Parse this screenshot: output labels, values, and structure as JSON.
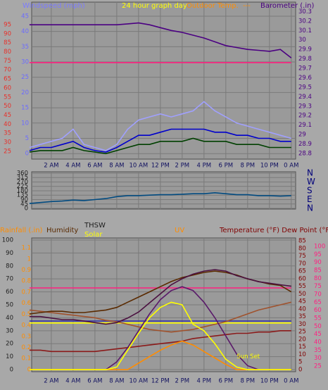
{
  "chart_data": [
    {
      "type": "line",
      "headers": [
        {
          "text": "Windspeed (mph)",
          "color": "#7b7bff"
        },
        {
          "text": "24 hour graph day",
          "color": "#ffff00"
        },
        {
          "text": "Outdoor Temp.",
          "color": "#ff8c00"
        },
        {
          "text": "---",
          "color": "#ff8c00"
        },
        {
          "text": "Barometer (.in)",
          "color": "#4b0082"
        }
      ],
      "xlim": [
        0.2,
        24.4
      ],
      "xticks": [
        {
          "value": 2,
          "label": "2 AM"
        },
        {
          "value": 4,
          "label": "4 AM"
        },
        {
          "value": 6,
          "label": "6 AM"
        },
        {
          "value": 8,
          "label": "8 AM"
        },
        {
          "value": 10,
          "label": "10 AM"
        },
        {
          "value": 12,
          "label": "12 PM"
        },
        {
          "value": 14,
          "label": "2 PM"
        },
        {
          "value": 16,
          "label": "4 PM"
        },
        {
          "value": 18,
          "label": "6 PM"
        },
        {
          "value": 20,
          "label": "8 PM"
        },
        {
          "value": 22,
          "label": "10 PM"
        },
        {
          "value": 24,
          "label": "0 AM"
        }
      ],
      "ylim": [
        -1.8,
        49.6
      ],
      "yticks": [
        0,
        5,
        10,
        15,
        20,
        25,
        30,
        35,
        40,
        45
      ],
      "ycolor": "#6b6bff",
      "y2lim": [
        28.74,
        30.4
      ],
      "y2ticks": [
        28.8,
        28.9,
        29,
        29.1,
        29.2,
        29.3,
        29.4,
        29.5,
        29.6,
        29.7,
        29.8,
        29.9,
        30,
        30.1,
        30.2,
        30.3
      ],
      "y2color": "#4b0082",
      "y3lim": [
        20.7,
        107.4
      ],
      "y3ticks": [
        25,
        30,
        35,
        40,
        45,
        50,
        55,
        60,
        65,
        70,
        75,
        80,
        85,
        90,
        95
      ],
      "y3color": "#e8302a",
      "grid": true,
      "x": [
        0,
        1,
        2,
        3,
        4,
        5,
        6,
        7,
        8,
        9,
        10,
        11,
        12,
        13,
        14,
        15,
        16,
        17,
        18,
        19,
        20,
        21,
        22,
        23,
        24
      ],
      "series": [
        {
          "color": "#a0a0ff",
          "values": [
            2,
            3,
            4,
            5,
            8,
            3,
            2,
            1,
            3,
            8,
            11,
            12,
            13,
            12,
            13,
            14,
            17,
            14,
            12,
            10,
            9,
            8,
            7,
            6,
            5
          ]
        },
        {
          "color": "#0000cc",
          "values": [
            1,
            2,
            2,
            3,
            4,
            2,
            1,
            0.5,
            2,
            4,
            6,
            6,
            7,
            8,
            8,
            8,
            8,
            7,
            7,
            6,
            6,
            5,
            5,
            4,
            4
          ]
        },
        {
          "color": "#004000",
          "values": [
            0.5,
            1,
            1,
            1,
            2,
            1,
            0.5,
            0,
            1,
            2,
            3,
            3,
            4,
            4,
            4,
            5,
            4,
            4,
            4,
            3,
            3,
            3,
            2,
            2,
            2
          ]
        },
        {
          "color": "#4b0082",
          "axis": "y2",
          "values": [
            30.16,
            30.16,
            30.16,
            30.16,
            30.16,
            30.16,
            30.16,
            30.16,
            30.16,
            30.17,
            30.18,
            30.16,
            30.13,
            30.1,
            30.08,
            30.05,
            30.02,
            29.98,
            29.94,
            29.92,
            29.9,
            29.89,
            29.88,
            29.9,
            29.81
          ]
        },
        {
          "color": "#ff2080",
          "axis": "y3",
          "values": [
            74,
            74,
            74,
            74,
            74,
            74,
            74,
            74,
            74,
            74,
            74,
            74,
            74,
            74,
            74,
            74,
            74,
            74,
            74,
            74,
            74,
            74,
            74,
            74,
            74
          ]
        }
      ]
    },
    {
      "type": "line",
      "xlim": [
        0.2,
        24.4
      ],
      "xticks": [
        2,
        4,
        6,
        8,
        10,
        12,
        14,
        16,
        18,
        20,
        22,
        24
      ],
      "ylim": [
        -7,
        374
      ],
      "yticks": [
        0,
        45,
        90,
        135,
        180,
        225,
        270,
        315,
        360
      ],
      "ycolor": "#202020",
      "y2lim": [
        -7,
        374
      ],
      "y2ticks": [
        {
          "value": 360,
          "label": "N"
        },
        {
          "value": 270,
          "label": "W"
        },
        {
          "value": 180,
          "label": "S"
        },
        {
          "value": 90,
          "label": "E"
        },
        {
          "value": 0,
          "label": "N"
        }
      ],
      "y2color": "#00007a",
      "grid": true,
      "x": [
        0,
        1,
        2,
        3,
        4,
        5,
        6,
        7,
        8,
        9,
        10,
        11,
        12,
        13,
        14,
        15,
        16,
        17,
        18,
        19,
        20,
        21,
        22,
        23,
        24
      ],
      "series": [
        {
          "color": "#004a80",
          "values": [
            50,
            60,
            70,
            75,
            85,
            80,
            90,
            100,
            120,
            130,
            130,
            135,
            140,
            140,
            145,
            150,
            150,
            160,
            150,
            140,
            140,
            130,
            130,
            125,
            130
          ]
        }
      ]
    },
    {
      "type": "line",
      "headers": [
        {
          "text": "Rainfall (.in)",
          "color": "#ff8c00"
        },
        {
          "text": "Humidity",
          "color": "#5a2a00"
        },
        {
          "text": "THSW",
          "color": "#202020"
        },
        {
          "text": "Solar",
          "color": "#ffff00"
        },
        {
          "text": "UV",
          "color": "#ff8c00"
        },
        {
          "text": "Temperature (°F) Dew Point (°F)",
          "color": "#800000"
        }
      ],
      "xlim": [
        0.2,
        24.4
      ],
      "xticks": [
        {
          "value": 2,
          "label": "2 AM"
        },
        {
          "value": 4,
          "label": "4 AM"
        },
        {
          "value": 6,
          "label": "6 AM"
        },
        {
          "value": 8,
          "label": "8 AM"
        },
        {
          "value": 10,
          "label": "10 AM"
        },
        {
          "value": 12,
          "label": "12 PM"
        },
        {
          "value": 14,
          "label": "2 PM"
        },
        {
          "value": 16,
          "label": "4 PM"
        },
        {
          "value": 18,
          "label": "6 PM"
        },
        {
          "value": 20,
          "label": "8 PM"
        },
        {
          "value": 22,
          "label": "10 PM"
        },
        {
          "value": 24,
          "label": "0 AM"
        }
      ],
      "ylim": [
        -1.6,
        101.6
      ],
      "yticks": [
        0,
        10,
        20,
        30,
        40,
        50,
        60,
        70,
        80,
        90,
        100
      ],
      "ycolor": "#202020",
      "y2lim": [
        -0.02,
        1.19
      ],
      "y2ticks": [
        0,
        0.1,
        0.2,
        0.3,
        0.4,
        0.5,
        0.6,
        0.7,
        0.8,
        0.9,
        1,
        1.1
      ],
      "y2color": "#ff8c00",
      "y3lim": [
        -1.4,
        86.9
      ],
      "y3ticks": [
        0,
        5,
        10,
        15,
        20,
        25,
        30,
        35,
        40,
        45,
        50,
        55,
        60,
        65,
        70,
        75,
        80,
        85
      ],
      "y3color": "#800000",
      "y4lim": [
        21.5,
        105.3
      ],
      "y4ticks": [
        25,
        30,
        35,
        40,
        45,
        50,
        55,
        60,
        65,
        70,
        75,
        80,
        85,
        90,
        95,
        100
      ],
      "y4color": "#ff2080",
      "grid": true,
      "annotation": "Sun Set",
      "x": [
        0,
        1,
        2,
        3,
        4,
        5,
        6,
        7,
        8,
        9,
        10,
        11,
        12,
        13,
        14,
        15,
        16,
        17,
        18,
        19,
        20,
        21,
        22,
        23,
        24
      ],
      "series": [
        {
          "color": "#ff2080",
          "axis": "y4",
          "values": [
            74,
            74,
            74,
            74,
            74,
            74,
            74,
            74,
            74,
            74,
            74,
            74,
            74,
            74,
            74,
            74,
            74,
            74,
            74,
            74,
            74,
            74,
            74,
            74,
            74
          ]
        },
        {
          "color": "#3030a0",
          "values": [
            37.5,
            37.5,
            37.5,
            37.5,
            37.5,
            37.5,
            37.5,
            37.5,
            37.5,
            37.5,
            37.5,
            37.5,
            37.5,
            37.5,
            37.5,
            37.5,
            37.5,
            37.5,
            37.5,
            37.5,
            37.5,
            37.5,
            37.5,
            37.5,
            37.5
          ]
        },
        {
          "color": "#ffff00",
          "values": [
            36,
            36,
            36,
            36,
            36,
            36,
            36,
            36,
            36,
            36,
            36,
            36,
            36,
            36,
            36,
            36,
            36,
            36,
            36,
            36,
            36,
            36,
            36,
            36,
            36
          ]
        },
        {
          "color": "#8b1a1a",
          "values": [
            15,
            15,
            14,
            14,
            14,
            14,
            14,
            15,
            16,
            17,
            18,
            19,
            20,
            21,
            22,
            24,
            25,
            26,
            27,
            28,
            28,
            29,
            29,
            30,
            30
          ]
        },
        {
          "color": "#a0522d",
          "values": [
            46,
            45,
            44,
            43,
            42,
            41,
            40,
            38,
            37,
            35,
            33,
            31,
            30,
            29,
            30,
            31,
            33,
            35,
            37,
            40,
            43,
            46,
            48,
            50,
            52
          ]
        },
        {
          "color": "#5a2a00",
          "values": [
            43,
            44,
            45,
            45,
            44,
            44,
            45,
            46,
            48,
            52,
            56,
            60,
            64,
            68,
            71,
            73,
            75,
            76,
            75,
            73,
            70,
            68,
            66,
            65,
            60
          ]
        },
        {
          "color": "#4b1040",
          "axis": "y3",
          "values": [
            35,
            35,
            34,
            33,
            33,
            32,
            31,
            30,
            31,
            34,
            38,
            44,
            50,
            56,
            60,
            63,
            65,
            66,
            65,
            62,
            60,
            58,
            57,
            56,
            55
          ]
        },
        {
          "color": "#5a1a6a",
          "values": [
            null,
            null,
            null,
            null,
            null,
            null,
            null,
            0,
            6,
            17,
            30,
            43,
            54,
            61,
            64,
            61,
            52,
            40,
            26,
            12,
            3,
            0,
            null,
            null,
            null
          ]
        },
        {
          "color": "#ff8c00",
          "values": [
            0,
            0,
            0,
            0,
            0,
            0,
            0,
            0,
            0,
            0,
            5,
            10,
            15,
            19,
            22,
            19,
            14,
            9,
            4,
            0,
            0,
            0,
            0,
            0,
            0
          ]
        },
        {
          "color": "#ffff00",
          "values": [
            0,
            0,
            0,
            0,
            0,
            0,
            0,
            0,
            2,
            15,
            28,
            40,
            48,
            52,
            50,
            35,
            30,
            20,
            8,
            2,
            0,
            0,
            0,
            0,
            0
          ]
        }
      ]
    }
  ]
}
